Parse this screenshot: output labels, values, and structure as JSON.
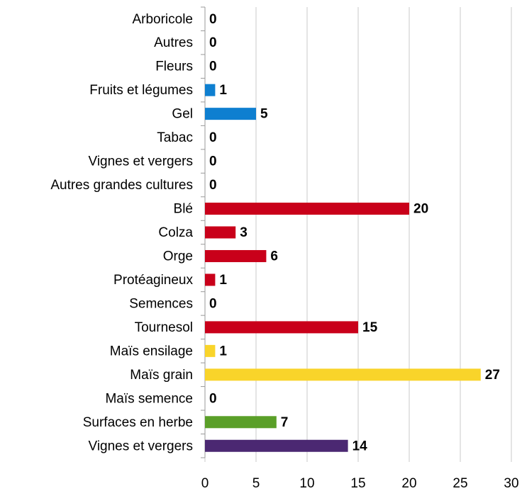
{
  "chart_data": {
    "type": "hbar",
    "categories": [
      "Arboricole",
      "Autres",
      "Fleurs",
      "Fruits et légumes",
      "Gel",
      "Tabac",
      "Vignes et vergers",
      "Autres grandes cultures",
      "Blé",
      "Colza",
      "Orge",
      "Protéagineux",
      "Semences",
      "Tournesol",
      "Maïs ensilage",
      "Maïs grain",
      "Maïs semence",
      "Surfaces en herbe",
      "Vignes et vergers"
    ],
    "values": [
      0,
      0,
      0,
      1,
      5,
      0,
      0,
      0,
      20,
      3,
      6,
      1,
      0,
      15,
      1,
      27,
      0,
      7,
      14
    ],
    "colors": [
      "#0e7fd0",
      "#0e7fd0",
      "#0e7fd0",
      "#0e7fd0",
      "#0e7fd0",
      "#0e7fd0",
      "#0e7fd0",
      "#c9001a",
      "#c9001a",
      "#c9001a",
      "#c9001a",
      "#c9001a",
      "#c9001a",
      "#c9001a",
      "#f9d42a",
      "#f9d42a",
      "#f9d42a",
      "#5a9f28",
      "#4b2872"
    ],
    "xlim": [
      0,
      30
    ],
    "xticks": [
      0,
      5,
      10,
      15,
      20,
      25,
      30
    ],
    "grid": true
  }
}
